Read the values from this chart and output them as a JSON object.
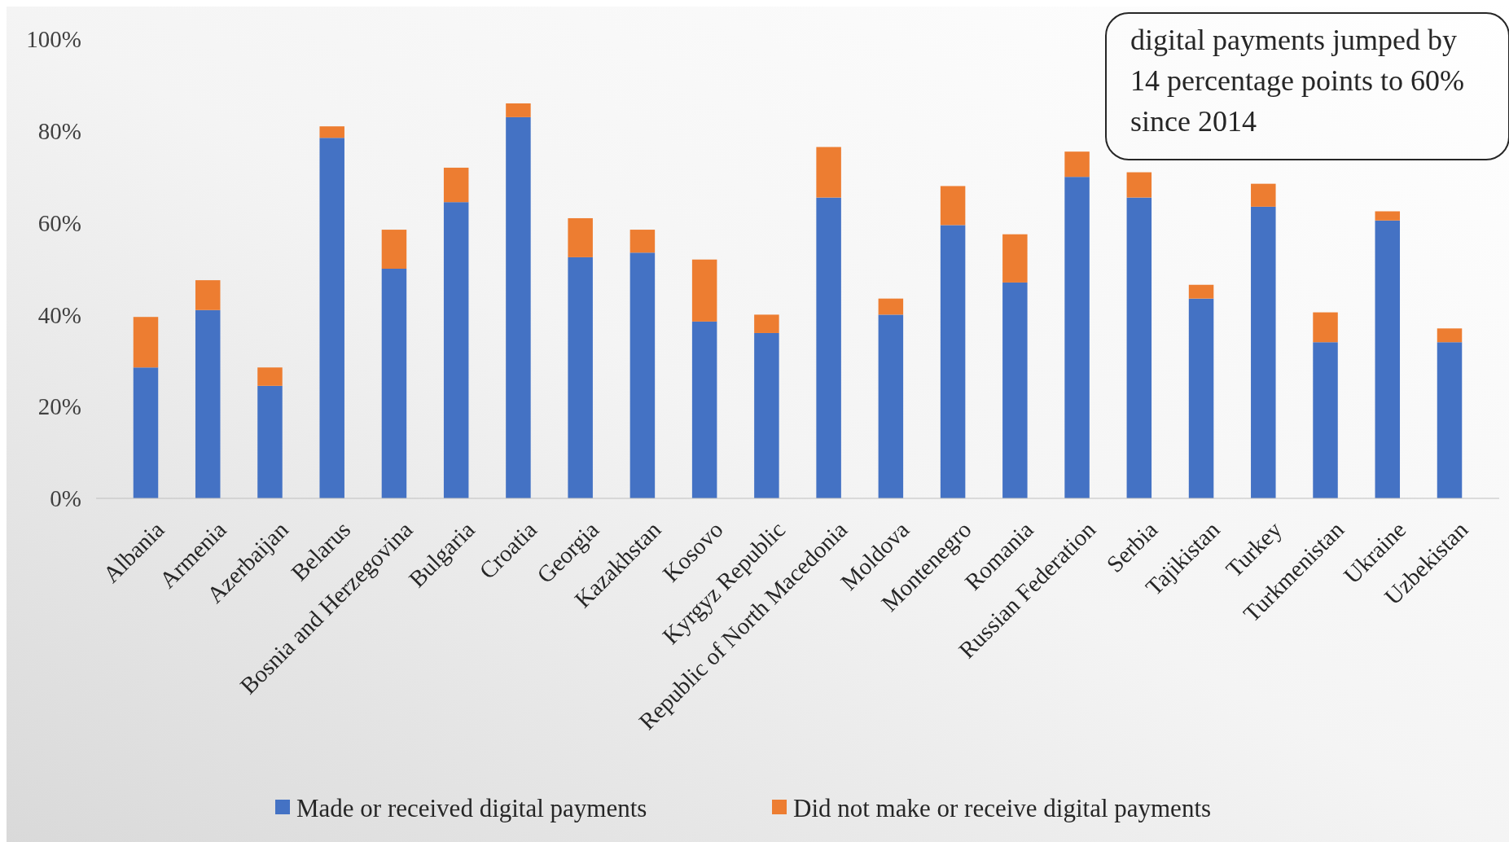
{
  "chart_data": {
    "type": "bar",
    "stacked": true,
    "categories": [
      "Albania",
      "Armenia",
      "Azerbaijan",
      "Belarus",
      "Bosnia and Herzegovina",
      "Bulgaria",
      "Croatia",
      "Georgia",
      "Kazakhstan",
      "Kosovo",
      "Kyrgyz Republic",
      "Republic of North Macedonia",
      "Moldova",
      "Montenegro",
      "Romania",
      "Russian Federation",
      "Serbia",
      "Tajikistan",
      "Turkey",
      "Turkmenistan",
      "Ukraine",
      "Uzbekistan"
    ],
    "series": [
      {
        "name": "Made or received digital payments",
        "color": "#4472c4",
        "values": [
          28.5,
          41,
          24.5,
          78.5,
          50,
          64.5,
          83,
          52.5,
          53.5,
          38.5,
          36,
          65.5,
          40,
          59.5,
          47,
          70,
          65.5,
          43.5,
          63.5,
          34,
          60.5,
          34
        ]
      },
      {
        "name": "Did not make or receive digital payments",
        "color": "#ed7d31",
        "values": [
          11,
          6.5,
          4,
          2.5,
          8.5,
          7.5,
          3,
          8.5,
          5,
          13.5,
          4,
          11,
          3.5,
          8.5,
          10.5,
          5.5,
          5.5,
          3,
          5,
          6.5,
          2,
          3
        ]
      }
    ],
    "ylim": [
      0,
      100
    ],
    "yticks": [
      {
        "value": 0,
        "label": "0%"
      },
      {
        "value": 20,
        "label": "20%"
      },
      {
        "value": 40,
        "label": "40%"
      },
      {
        "value": 60,
        "label": "60%"
      },
      {
        "value": 80,
        "label": "80%"
      },
      {
        "value": 100,
        "label": "100%"
      }
    ],
    "grid": false,
    "legend": "bottom",
    "annotations": [
      "digital payments jumped by 14 percentage points to 60% since 2014"
    ]
  }
}
